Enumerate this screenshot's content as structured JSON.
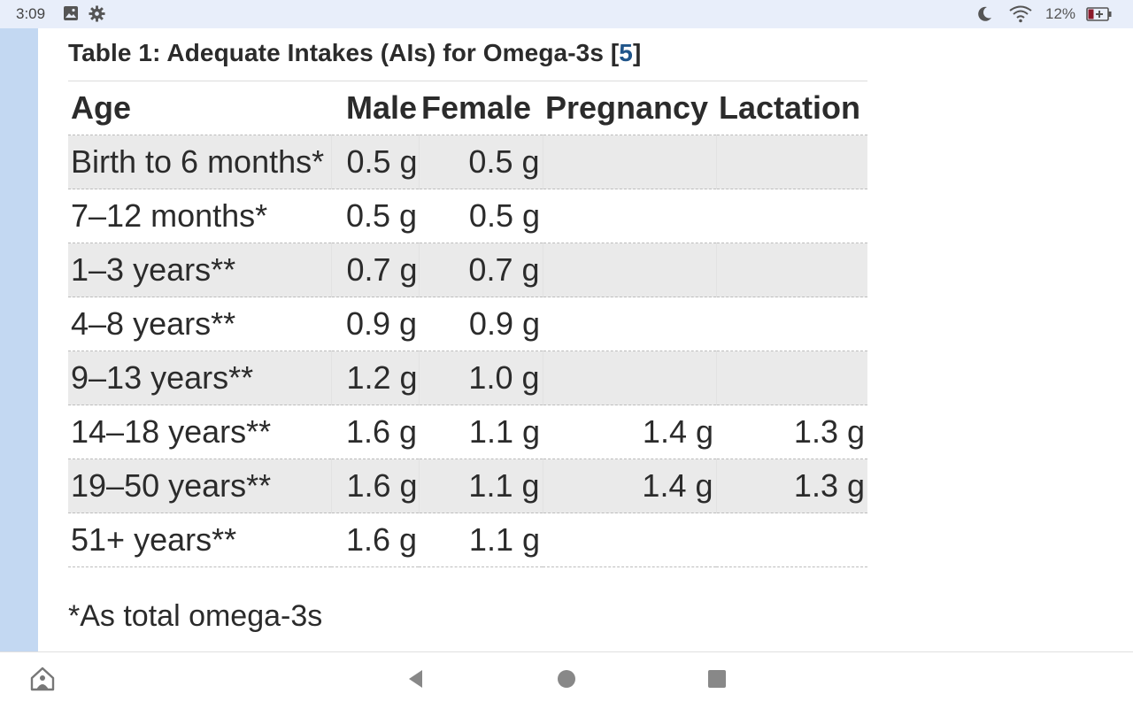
{
  "status_bar": {
    "time": "3:09",
    "battery_percent": "12%",
    "icons": [
      "image-icon",
      "gear-icon",
      "moon-icon",
      "wifi-icon",
      "battery-icon"
    ]
  },
  "table": {
    "caption": "Table 1: Adequate Intakes (AIs) for Omega-3s [",
    "caption_ref": "5",
    "caption_end": "]",
    "headers": {
      "age": "Age",
      "male": "Male",
      "female": "Female",
      "pregnancy": "Pregnancy",
      "lactation": "Lactation"
    },
    "rows": [
      {
        "age": "Birth to 6 months*",
        "male": "0.5 g",
        "female": "0.5 g",
        "pregnancy": "",
        "lactation": ""
      },
      {
        "age": "7–12 months*",
        "male": "0.5 g",
        "female": "0.5 g",
        "pregnancy": "",
        "lactation": ""
      },
      {
        "age": "1–3 years**",
        "male": "0.7 g",
        "female": "0.7 g",
        "pregnancy": "",
        "lactation": ""
      },
      {
        "age": "4–8 years**",
        "male": "0.9 g",
        "female": "0.9 g",
        "pregnancy": "",
        "lactation": ""
      },
      {
        "age": "9–13 years**",
        "male": "1.2 g",
        "female": "1.0 g",
        "pregnancy": "",
        "lactation": ""
      },
      {
        "age": "14–18 years**",
        "male": "1.6 g",
        "female": "1.1 g",
        "pregnancy": "1.4 g",
        "lactation": "1.3 g"
      },
      {
        "age": "19–50 years**",
        "male": "1.6 g",
        "female": "1.1 g",
        "pregnancy": "1.4 g",
        "lactation": "1.3 g"
      },
      {
        "age": "51+ years**",
        "male": "1.6 g",
        "female": "1.1 g",
        "pregnancy": "",
        "lactation": ""
      }
    ]
  },
  "footnote": "*As total omega-3s",
  "nav_bar": {
    "buttons": [
      "app-home-icon",
      "back-icon",
      "home-icon",
      "recents-icon"
    ]
  },
  "colors": {
    "status_bar_bg": "#e8eefa",
    "left_strip": "#c3d8f2",
    "link": "#20558a",
    "row_shade": "#eaeaea",
    "battery_red": "#8b1a2b"
  }
}
